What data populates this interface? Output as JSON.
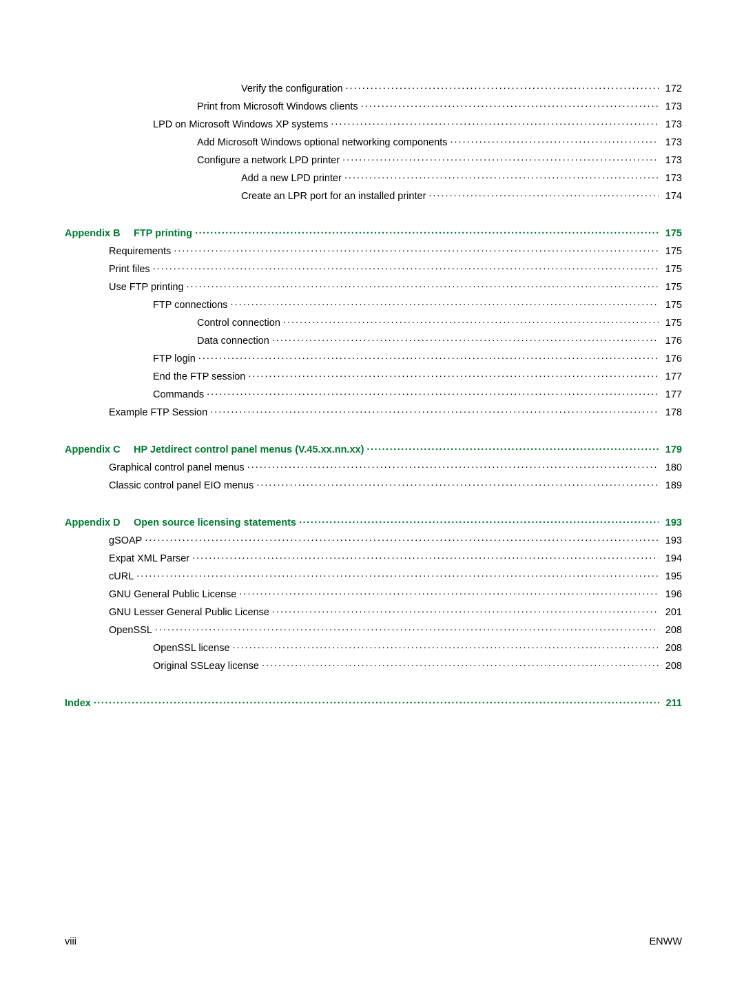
{
  "entries": [
    {
      "indent": 4,
      "title": "Verify the configuration",
      "page": "172",
      "heading": false
    },
    {
      "indent": 3,
      "title": "Print from Microsoft Windows clients",
      "page": "173",
      "heading": false
    },
    {
      "indent": 2,
      "title": "LPD on Microsoft Windows XP systems",
      "page": "173",
      "heading": false
    },
    {
      "indent": 3,
      "title": "Add Microsoft Windows optional networking components",
      "page": "173",
      "heading": false
    },
    {
      "indent": 3,
      "title": "Configure a network LPD printer",
      "page": "173",
      "heading": false
    },
    {
      "indent": 4,
      "title": "Add a new LPD printer",
      "page": "173",
      "heading": false
    },
    {
      "indent": 4,
      "title": "Create an LPR port for an installed printer",
      "page": "174",
      "heading": false
    },
    {
      "gap": true
    },
    {
      "indent": 0,
      "prefix": "Appendix B",
      "title": "FTP printing",
      "page": "175",
      "heading": true
    },
    {
      "indent": 1,
      "title": "Requirements",
      "page": "175",
      "heading": false
    },
    {
      "indent": 1,
      "title": "Print files",
      "page": "175",
      "heading": false
    },
    {
      "indent": 1,
      "title": "Use FTP printing",
      "page": "175",
      "heading": false
    },
    {
      "indent": 2,
      "title": "FTP connections",
      "page": "175",
      "heading": false
    },
    {
      "indent": 3,
      "title": "Control connection",
      "page": "175",
      "heading": false
    },
    {
      "indent": 3,
      "title": "Data connection",
      "page": "176",
      "heading": false
    },
    {
      "indent": 2,
      "title": "FTP login",
      "page": "176",
      "heading": false
    },
    {
      "indent": 2,
      "title": "End the FTP session",
      "page": "177",
      "heading": false
    },
    {
      "indent": 2,
      "title": "Commands",
      "page": "177",
      "heading": false
    },
    {
      "indent": 1,
      "title": "Example FTP Session",
      "page": "178",
      "heading": false
    },
    {
      "gap": true
    },
    {
      "indent": 0,
      "prefix": "Appendix C",
      "title": "HP Jetdirect control panel menus (V.45.xx.nn.xx)",
      "page": "179",
      "heading": true
    },
    {
      "indent": 1,
      "title": "Graphical control panel menus",
      "page": "180",
      "heading": false
    },
    {
      "indent": 1,
      "title": "Classic control panel EIO menus",
      "page": "189",
      "heading": false
    },
    {
      "gap": true
    },
    {
      "indent": 0,
      "prefix": "Appendix D",
      "title": "Open source licensing statements",
      "page": "193",
      "heading": true
    },
    {
      "indent": 1,
      "title": "gSOAP",
      "page": "193",
      "heading": false
    },
    {
      "indent": 1,
      "title": "Expat XML Parser",
      "page": "194",
      "heading": false
    },
    {
      "indent": 1,
      "title": "cURL",
      "page": "195",
      "heading": false
    },
    {
      "indent": 1,
      "title": "GNU General Public License",
      "page": "196",
      "heading": false
    },
    {
      "indent": 1,
      "title": "GNU Lesser General Public License",
      "page": "201",
      "heading": false
    },
    {
      "indent": 1,
      "title": "OpenSSL",
      "page": "208",
      "heading": false
    },
    {
      "indent": 2,
      "title": "OpenSSL license",
      "page": "208",
      "heading": false
    },
    {
      "indent": 2,
      "title": "Original SSLeay license",
      "page": "208",
      "heading": false
    },
    {
      "gap": true
    },
    {
      "indent": 0,
      "title": "Index",
      "page": "211",
      "heading": true
    }
  ],
  "footer": {
    "left": "viii",
    "right": "ENWW"
  }
}
